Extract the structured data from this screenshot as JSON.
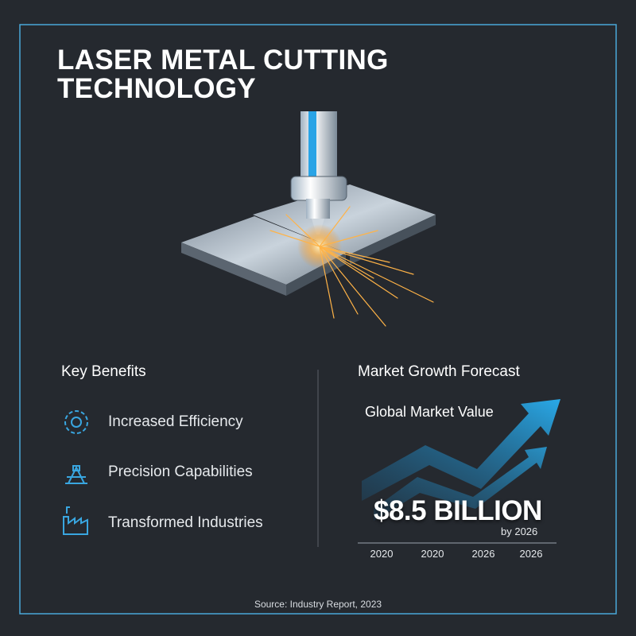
{
  "header": {
    "title": "LASER METAL CUTTING TECHNOLOGY"
  },
  "benefits": {
    "title": "Key Benefits",
    "items": [
      "Increased Efficiency",
      "Precision Capabilities",
      "Transformed Industries"
    ]
  },
  "market": {
    "title": "Market Growth Forecast",
    "subtitle": "Global Market Value",
    "headline": "$8.5 BILLION",
    "note": "by 2026",
    "axis_labels": [
      "2020",
      "2020",
      "2026",
      "2026"
    ]
  },
  "footer": {
    "source": "Source: Industry Report, 2023"
  }
}
